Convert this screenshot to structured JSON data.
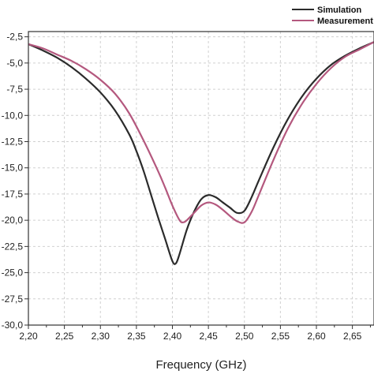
{
  "chart_data": {
    "type": "line",
    "title": "",
    "xlabel": "Frequency (GHz)",
    "ylabel": "",
    "xlim": [
      2.2,
      2.68
    ],
    "ylim": [
      -30.0,
      -2.0
    ],
    "grid": true,
    "legend_position": "top-right",
    "x_ticks": [
      "2,20",
      "2,25",
      "2,30",
      "2,35",
      "2,40",
      "2,45",
      "2,50",
      "2,55",
      "2,60",
      "2,65"
    ],
    "y_ticks": [
      "-2,5",
      "-5,0",
      "-7,5",
      "-10,0",
      "-12,5",
      "-15,0",
      "-17,5",
      "-20,0",
      "-22,5",
      "-25,0",
      "-27,5",
      "-30,0"
    ],
    "y_tick_values": [
      -2.5,
      -5.0,
      -7.5,
      -10.0,
      -12.5,
      -15.0,
      -17.5,
      -20.0,
      -22.5,
      -25.0,
      -27.5,
      -30.0
    ],
    "x_tick_values": [
      2.2,
      2.25,
      2.3,
      2.35,
      2.4,
      2.45,
      2.5,
      2.55,
      2.6,
      2.65
    ],
    "series": [
      {
        "name": "Simulation",
        "color": "#2b2b2b",
        "x": [
          2.2,
          2.22,
          2.24,
          2.26,
          2.28,
          2.3,
          2.32,
          2.34,
          2.35,
          2.36,
          2.37,
          2.38,
          2.39,
          2.4,
          2.405,
          2.41,
          2.42,
          2.43,
          2.44,
          2.45,
          2.46,
          2.47,
          2.48,
          2.49,
          2.5,
          2.51,
          2.52,
          2.54,
          2.56,
          2.58,
          2.6,
          2.62,
          2.64,
          2.66,
          2.68
        ],
        "y": [
          -3.2,
          -3.8,
          -4.5,
          -5.4,
          -6.5,
          -7.8,
          -9.5,
          -11.8,
          -13.4,
          -15.3,
          -17.5,
          -19.7,
          -21.8,
          -23.9,
          -24.1,
          -23.2,
          -20.9,
          -19.2,
          -18.0,
          -17.6,
          -17.8,
          -18.3,
          -18.8,
          -19.3,
          -19.1,
          -17.8,
          -16.2,
          -13.1,
          -10.4,
          -8.2,
          -6.5,
          -5.2,
          -4.3,
          -3.6,
          -3.0
        ]
      },
      {
        "name": "Measurement",
        "color": "#b4587e",
        "x": [
          2.2,
          2.22,
          2.24,
          2.26,
          2.28,
          2.3,
          2.32,
          2.34,
          2.36,
          2.38,
          2.39,
          2.4,
          2.41,
          2.415,
          2.42,
          2.43,
          2.44,
          2.45,
          2.46,
          2.47,
          2.48,
          2.49,
          2.5,
          2.51,
          2.52,
          2.54,
          2.56,
          2.58,
          2.6,
          2.62,
          2.64,
          2.66,
          2.68
        ],
        "y": [
          -3.2,
          -3.6,
          -4.2,
          -4.8,
          -5.6,
          -6.6,
          -7.9,
          -9.8,
          -12.4,
          -15.3,
          -16.9,
          -18.6,
          -20.0,
          -20.2,
          -20.0,
          -19.3,
          -18.6,
          -18.3,
          -18.5,
          -19.0,
          -19.6,
          -20.1,
          -20.2,
          -19.2,
          -17.6,
          -14.3,
          -11.3,
          -8.9,
          -7.0,
          -5.5,
          -4.4,
          -3.7,
          -3.0
        ]
      }
    ]
  }
}
